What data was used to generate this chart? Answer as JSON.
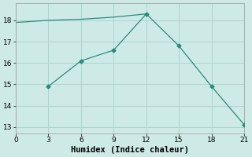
{
  "xlabel": "Humidex (Indice chaleur)",
  "line_upper_x": [
    0,
    3,
    6,
    9,
    12
  ],
  "line_upper_y": [
    17.9,
    18.0,
    18.05,
    18.15,
    18.3
  ],
  "line_lower_x": [
    3,
    6,
    9,
    12,
    15,
    18,
    21
  ],
  "line_lower_y": [
    14.9,
    16.1,
    16.6,
    18.3,
    16.8,
    14.9,
    13.1
  ],
  "line_color": "#2a8b7a",
  "bg_color": "#ceeae6",
  "grid_color": "#aed4cf",
  "xlim": [
    0,
    21
  ],
  "ylim": [
    12.7,
    18.8
  ],
  "xticks": [
    0,
    3,
    6,
    9,
    12,
    15,
    18,
    21
  ],
  "yticks": [
    13,
    14,
    15,
    16,
    17,
    18
  ],
  "tick_fontsize": 6.5,
  "label_fontsize": 7.5
}
